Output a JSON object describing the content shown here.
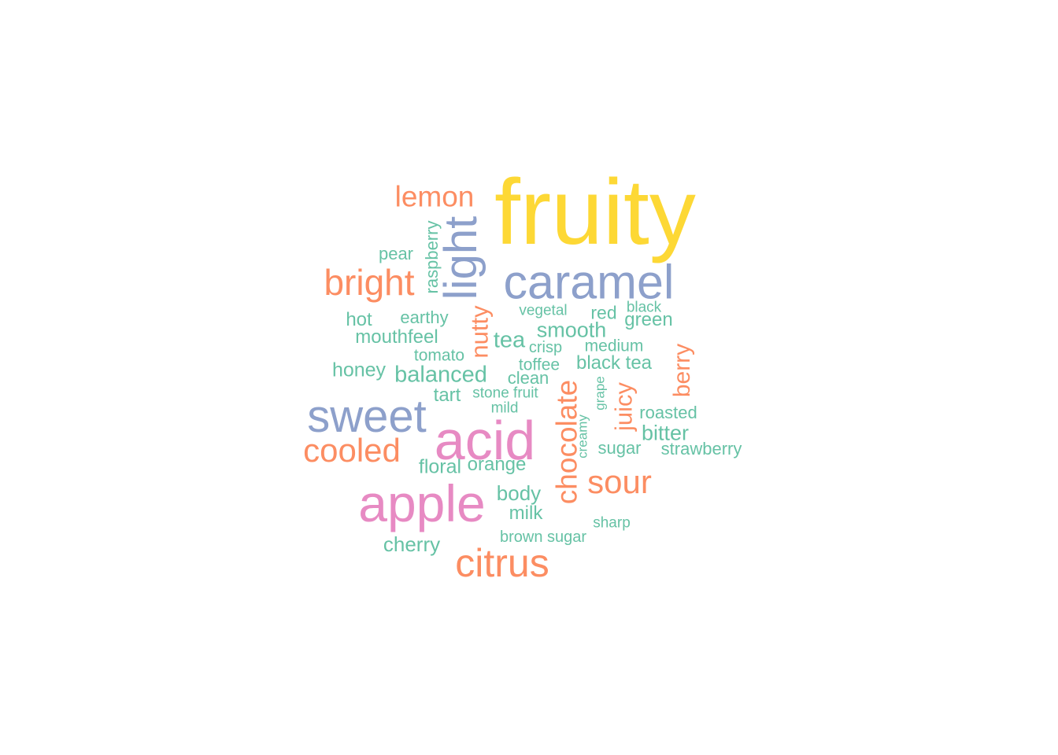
{
  "palette": {
    "yellow": "#fdd835",
    "blue": "#8da0cb",
    "pink": "#e78ac3",
    "orange": "#fc8d62",
    "green": "#66c2a5"
  },
  "words": [
    {
      "text": "fruity",
      "color": "yellow"
    },
    {
      "text": "lemon",
      "color": "orange"
    },
    {
      "text": "light",
      "color": "blue"
    },
    {
      "text": "raspberry",
      "color": "green"
    },
    {
      "text": "pear",
      "color": "green"
    },
    {
      "text": "caramel",
      "color": "blue"
    },
    {
      "text": "bright",
      "color": "orange"
    },
    {
      "text": "vegetal",
      "color": "green"
    },
    {
      "text": "black",
      "color": "green"
    },
    {
      "text": "red",
      "color": "green"
    },
    {
      "text": "green",
      "color": "green"
    },
    {
      "text": "hot",
      "color": "green"
    },
    {
      "text": "earthy",
      "color": "green"
    },
    {
      "text": "nutty",
      "color": "orange"
    },
    {
      "text": "smooth",
      "color": "green"
    },
    {
      "text": "mouthfeel",
      "color": "green"
    },
    {
      "text": "tea",
      "color": "green"
    },
    {
      "text": "crisp",
      "color": "green"
    },
    {
      "text": "medium",
      "color": "green"
    },
    {
      "text": "berry",
      "color": "orange"
    },
    {
      "text": "tomato",
      "color": "green"
    },
    {
      "text": "toffee",
      "color": "green"
    },
    {
      "text": "black tea",
      "color": "green"
    },
    {
      "text": "honey",
      "color": "green"
    },
    {
      "text": "balanced",
      "color": "green"
    },
    {
      "text": "clean",
      "color": "green"
    },
    {
      "text": "chocolate",
      "color": "orange"
    },
    {
      "text": "grape",
      "color": "green"
    },
    {
      "text": "juicy",
      "color": "orange"
    },
    {
      "text": "tart",
      "color": "green"
    },
    {
      "text": "stone fruit",
      "color": "green"
    },
    {
      "text": "roasted",
      "color": "green"
    },
    {
      "text": "sweet",
      "color": "blue"
    },
    {
      "text": "mild",
      "color": "green"
    },
    {
      "text": "creamy",
      "color": "green"
    },
    {
      "text": "acid",
      "color": "pink"
    },
    {
      "text": "bitter",
      "color": "green"
    },
    {
      "text": "cooled",
      "color": "orange"
    },
    {
      "text": "sugar",
      "color": "green"
    },
    {
      "text": "strawberry",
      "color": "green"
    },
    {
      "text": "floral",
      "color": "green"
    },
    {
      "text": "orange",
      "color": "green"
    },
    {
      "text": "sour",
      "color": "orange"
    },
    {
      "text": "apple",
      "color": "pink"
    },
    {
      "text": "body",
      "color": "green"
    },
    {
      "text": "milk",
      "color": "green"
    },
    {
      "text": "sharp",
      "color": "green"
    },
    {
      "text": "brown sugar",
      "color": "green"
    },
    {
      "text": "cherry",
      "color": "green"
    },
    {
      "text": "citrus",
      "color": "orange"
    }
  ]
}
